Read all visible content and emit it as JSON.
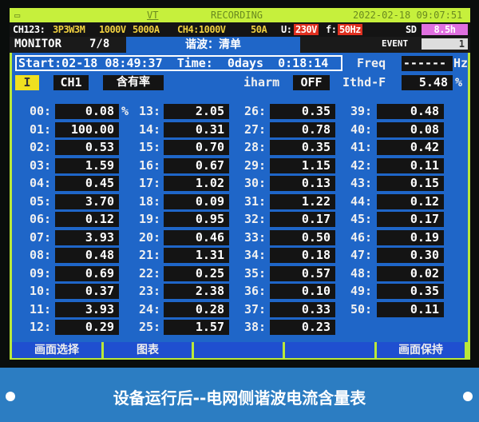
{
  "status_bar": {
    "icons": [
      "battery-icon",
      "memory-icon",
      "vt-icon"
    ],
    "vt": "VT",
    "recording": "RECORDING",
    "datetime": "2022-02-18 09:07:51"
  },
  "config": {
    "ch123": "CH123:",
    "wiring": "3P3W3M",
    "voltage": "1000V",
    "current": "5000A",
    "ch4": "CH4:1000V",
    "ch4_current": "50A",
    "u_label": "U:",
    "u_value": "230V",
    "f_label": "f:",
    "f_value": "50Hz",
    "sd_label": "SD",
    "sd_value": "8.5h",
    "event_label": "EVENT",
    "event_value": "1"
  },
  "header": {
    "monitor": "MONITOR",
    "page": "7/8",
    "title": "谐波：清单"
  },
  "session": {
    "start": "Start:02-18 08:49:37",
    "time": "Time:  0days  0:18:14",
    "freq_label": "Freq",
    "freq_value": "------",
    "freq_unit": "Hz"
  },
  "controls": {
    "mode": "I",
    "channel": "CH1",
    "type": "含有率",
    "iharm_label": "iharm",
    "iharm_value": "OFF",
    "thd_label": "Ithd-F",
    "thd_value": "5.48",
    "thd_unit": "%"
  },
  "harmonics_unit": "%",
  "harmonics": [
    {
      "order": "00:",
      "value": "0.08"
    },
    {
      "order": "01:",
      "value": "100.00"
    },
    {
      "order": "02:",
      "value": "0.53"
    },
    {
      "order": "03:",
      "value": "1.59"
    },
    {
      "order": "04:",
      "value": "0.45"
    },
    {
      "order": "05:",
      "value": "3.70"
    },
    {
      "order": "06:",
      "value": "0.12"
    },
    {
      "order": "07:",
      "value": "3.93"
    },
    {
      "order": "08:",
      "value": "0.48"
    },
    {
      "order": "09:",
      "value": "0.69"
    },
    {
      "order": "10:",
      "value": "0.37"
    },
    {
      "order": "11:",
      "value": "3.93"
    },
    {
      "order": "12:",
      "value": "0.29"
    },
    {
      "order": "13:",
      "value": "2.05"
    },
    {
      "order": "14:",
      "value": "0.31"
    },
    {
      "order": "15:",
      "value": "0.70"
    },
    {
      "order": "16:",
      "value": "0.67"
    },
    {
      "order": "17:",
      "value": "1.02"
    },
    {
      "order": "18:",
      "value": "0.09"
    },
    {
      "order": "19:",
      "value": "0.95"
    },
    {
      "order": "20:",
      "value": "0.46"
    },
    {
      "order": "21:",
      "value": "1.31"
    },
    {
      "order": "22:",
      "value": "0.25"
    },
    {
      "order": "23:",
      "value": "2.38"
    },
    {
      "order": "24:",
      "value": "0.28"
    },
    {
      "order": "25:",
      "value": "1.57"
    },
    {
      "order": "26:",
      "value": "0.35"
    },
    {
      "order": "27:",
      "value": "0.78"
    },
    {
      "order": "28:",
      "value": "0.35"
    },
    {
      "order": "29:",
      "value": "1.15"
    },
    {
      "order": "30:",
      "value": "0.13"
    },
    {
      "order": "31:",
      "value": "1.22"
    },
    {
      "order": "32:",
      "value": "0.17"
    },
    {
      "order": "33:",
      "value": "0.50"
    },
    {
      "order": "34:",
      "value": "0.18"
    },
    {
      "order": "35:",
      "value": "0.57"
    },
    {
      "order": "36:",
      "value": "0.10"
    },
    {
      "order": "37:",
      "value": "0.33"
    },
    {
      "order": "38:",
      "value": "0.23"
    },
    {
      "order": "39:",
      "value": "0.48"
    },
    {
      "order": "40:",
      "value": "0.08"
    },
    {
      "order": "41:",
      "value": "0.42"
    },
    {
      "order": "42:",
      "value": "0.11"
    },
    {
      "order": "43:",
      "value": "0.15"
    },
    {
      "order": "44:",
      "value": "0.12"
    },
    {
      "order": "45:",
      "value": "0.17"
    },
    {
      "order": "46:",
      "value": "0.19"
    },
    {
      "order": "47:",
      "value": "0.30"
    },
    {
      "order": "48:",
      "value": "0.02"
    },
    {
      "order": "49:",
      "value": "0.35"
    },
    {
      "order": "50:",
      "value": "0.11"
    }
  ],
  "footer": [
    "画面选择",
    "图表",
    "",
    "",
    "画面保持"
  ],
  "caption": "设备运行后--电网侧谐波电流含量表"
}
